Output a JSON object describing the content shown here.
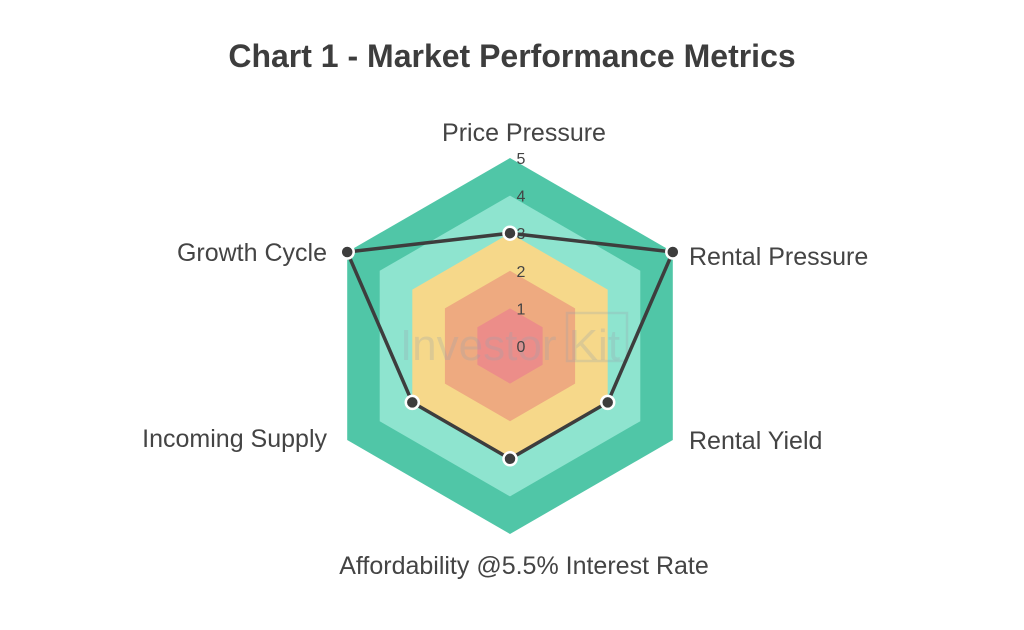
{
  "title": "Chart 1 - Market Performance Metrics",
  "watermark": "Investor Kit",
  "colors": {
    "band5": "#50c6a7",
    "band4": "#8ee4cf",
    "band3": "#f6d88a",
    "band2": "#eeaa80",
    "band1": "#ec8d89",
    "line": "#3d3d3d",
    "marker_stroke": "#ffffff"
  },
  "chart_data": {
    "type": "radar",
    "axes": [
      "Price Pressure",
      "Rental Pressure",
      "Rental Yield",
      "Affordability @5.5% Interest Rate",
      "Incoming Supply",
      "Growth Cycle"
    ],
    "values": [
      3,
      5,
      3,
      3,
      3,
      5
    ],
    "rlim": [
      0,
      5
    ],
    "ticks": [
      "0",
      "1",
      "2",
      "3",
      "4",
      "5"
    ],
    "grid": true,
    "legend": "none"
  }
}
